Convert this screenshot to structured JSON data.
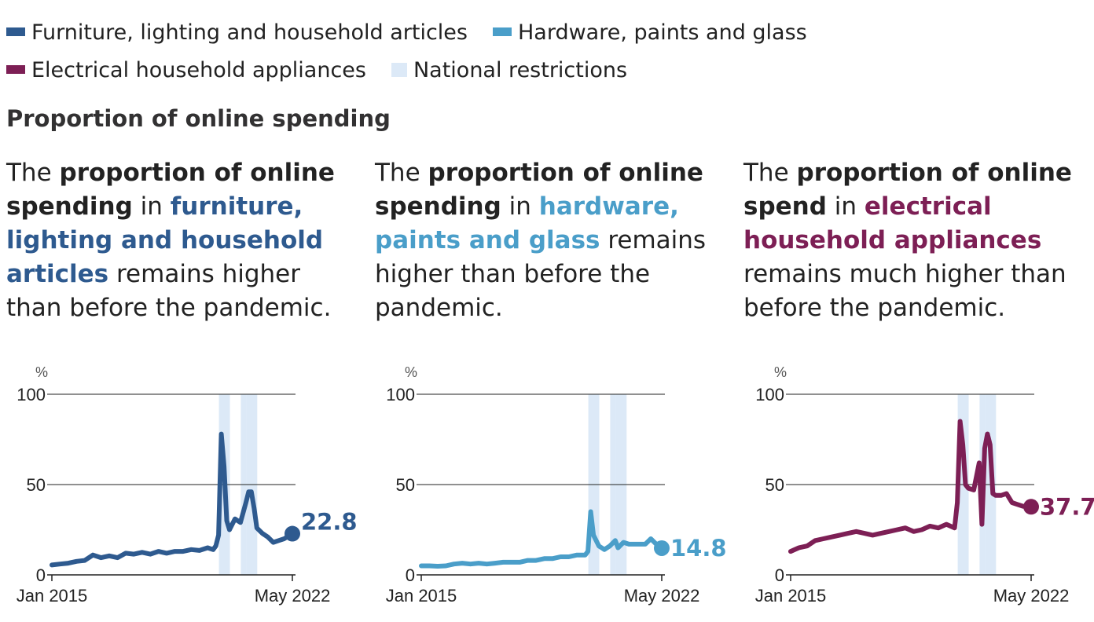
{
  "colors": {
    "furniture": "#2e5a8f",
    "hardware": "#4a9ec9",
    "electrical": "#7d1f55",
    "restrictions": "#dce9f7",
    "axis": "#222222",
    "text": "#222222"
  },
  "legend": {
    "items": [
      {
        "label": "Furniture, lighting and household articles",
        "color": "#2e5a8f"
      },
      {
        "label": "Hardware, paints and glass",
        "color": "#4a9ec9"
      },
      {
        "label": "Electrical household appliances",
        "color": "#7d1f55"
      },
      {
        "label": "National restrictions",
        "color": "#dce9f7"
      }
    ]
  },
  "section_title": "Proportion of online spending",
  "blurbs": [
    {
      "t1": "The ",
      "b1": "proportion of online spending",
      "t2": " in ",
      "hl": "furniture, lighting and household articles",
      "t3": " remains higher than before the pandemic."
    },
    {
      "t1": "The ",
      "b1": "proportion of online spending",
      "t2": " in ",
      "hl": "hardware, paints and glass",
      "t3": " remains higher than before the pandemic."
    },
    {
      "t1": "The ",
      "b1": "proportion of online spend",
      "t2": " in ",
      "hl": "electrical household appliances",
      "t3": " remains much higher than before the pandemic."
    }
  ],
  "chart_data": [
    {
      "type": "line",
      "series": [
        {
          "name": "Furniture, lighting and household articles",
          "color": "#2e5a8f"
        }
      ],
      "unit": "%",
      "ylim": [
        0,
        100
      ],
      "yticks": [
        0,
        50,
        100
      ],
      "xrange": [
        "2015-01",
        "2022-05"
      ],
      "xtick_labels": [
        "Jan 2015",
        "May 2022"
      ],
      "end_label": "22.8",
      "restrictions": [
        [
          "2020-03",
          "2020-05"
        ],
        [
          "2020-11",
          "2020-11"
        ],
        [
          "2021-01",
          "2021-03"
        ]
      ],
      "x": [
        "2015-01",
        "2015-04",
        "2015-07",
        "2015-10",
        "2016-01",
        "2016-04",
        "2016-07",
        "2016-10",
        "2017-01",
        "2017-04",
        "2017-07",
        "2017-10",
        "2018-01",
        "2018-04",
        "2018-07",
        "2018-10",
        "2019-01",
        "2019-04",
        "2019-07",
        "2019-10",
        "2019-12",
        "2020-01",
        "2020-02",
        "2020-03",
        "2020-04",
        "2020-05",
        "2020-06",
        "2020-08",
        "2020-10",
        "2020-12",
        "2021-01",
        "2021-02",
        "2021-03",
        "2021-04",
        "2021-06",
        "2021-08",
        "2021-10",
        "2021-12",
        "2022-02",
        "2022-05"
      ],
      "y": [
        5.5,
        6,
        6.5,
        7.5,
        8,
        11,
        9.5,
        10.5,
        9.5,
        12,
        11.5,
        12.5,
        11.5,
        13,
        12,
        13,
        13,
        14,
        13.5,
        15,
        14,
        16,
        22,
        78,
        60,
        30,
        25,
        31,
        29,
        40,
        46,
        46,
        37,
        26,
        23,
        21,
        18,
        19,
        20,
        22.8
      ]
    },
    {
      "type": "line",
      "series": [
        {
          "name": "Hardware, paints and glass",
          "color": "#4a9ec9"
        }
      ],
      "unit": "%",
      "ylim": [
        0,
        100
      ],
      "yticks": [
        0,
        50,
        100
      ],
      "xrange": [
        "2015-01",
        "2022-05"
      ],
      "xtick_labels": [
        "Jan 2015",
        "May 2022"
      ],
      "end_label": "14.8",
      "restrictions": [
        [
          "2020-03",
          "2020-05"
        ],
        [
          "2020-11",
          "2020-11"
        ],
        [
          "2021-01",
          "2021-03"
        ]
      ],
      "x": [
        "2015-01",
        "2015-04",
        "2015-07",
        "2015-10",
        "2016-01",
        "2016-04",
        "2016-07",
        "2016-10",
        "2017-01",
        "2017-04",
        "2017-07",
        "2017-10",
        "2018-01",
        "2018-04",
        "2018-07",
        "2018-10",
        "2019-01",
        "2019-04",
        "2019-07",
        "2019-10",
        "2020-01",
        "2020-02",
        "2020-03",
        "2020-04",
        "2020-06",
        "2020-08",
        "2020-10",
        "2020-12",
        "2021-01",
        "2021-03",
        "2021-05",
        "2021-07",
        "2021-09",
        "2021-11",
        "2022-01",
        "2022-03",
        "2022-05"
      ],
      "y": [
        5,
        5,
        4.8,
        5,
        6,
        6.5,
        6,
        6.5,
        6,
        6.5,
        7,
        7,
        7,
        8,
        8,
        9,
        9,
        10,
        10,
        11,
        11,
        13,
        35,
        22,
        16,
        14,
        16,
        19,
        15,
        18,
        17,
        17,
        17,
        17,
        20,
        17,
        14.8
      ]
    },
    {
      "type": "line",
      "series": [
        {
          "name": "Electrical household appliances",
          "color": "#7d1f55"
        }
      ],
      "unit": "%",
      "ylim": [
        0,
        100
      ],
      "yticks": [
        0,
        50,
        100
      ],
      "xrange": [
        "2015-01",
        "2022-05"
      ],
      "xtick_labels": [
        "Jan 2015",
        "May 2022"
      ],
      "end_label": "37.7",
      "restrictions": [
        [
          "2020-03",
          "2020-05"
        ],
        [
          "2020-11",
          "2020-11"
        ],
        [
          "2021-01",
          "2021-03"
        ]
      ],
      "x": [
        "2015-01",
        "2015-04",
        "2015-07",
        "2015-10",
        "2016-01",
        "2016-04",
        "2016-07",
        "2016-10",
        "2017-01",
        "2017-04",
        "2017-07",
        "2017-10",
        "2018-01",
        "2018-04",
        "2018-07",
        "2018-10",
        "2019-01",
        "2019-04",
        "2019-07",
        "2019-10",
        "2020-01",
        "2020-02",
        "2020-03",
        "2020-04",
        "2020-05",
        "2020-06",
        "2020-08",
        "2020-10",
        "2020-11",
        "2020-12",
        "2021-01",
        "2021-02",
        "2021-03",
        "2021-04",
        "2021-06",
        "2021-08",
        "2021-10",
        "2021-12",
        "2022-02",
        "2022-05"
      ],
      "y": [
        13,
        15,
        16,
        19,
        20,
        21,
        22,
        23,
        24,
        23,
        22,
        23,
        24,
        25,
        26,
        24,
        25,
        27,
        26,
        28,
        26,
        40,
        85,
        72,
        50,
        48,
        47,
        62,
        28,
        70,
        78,
        72,
        45,
        44,
        44,
        45,
        40,
        39,
        38,
        37.7
      ]
    }
  ]
}
